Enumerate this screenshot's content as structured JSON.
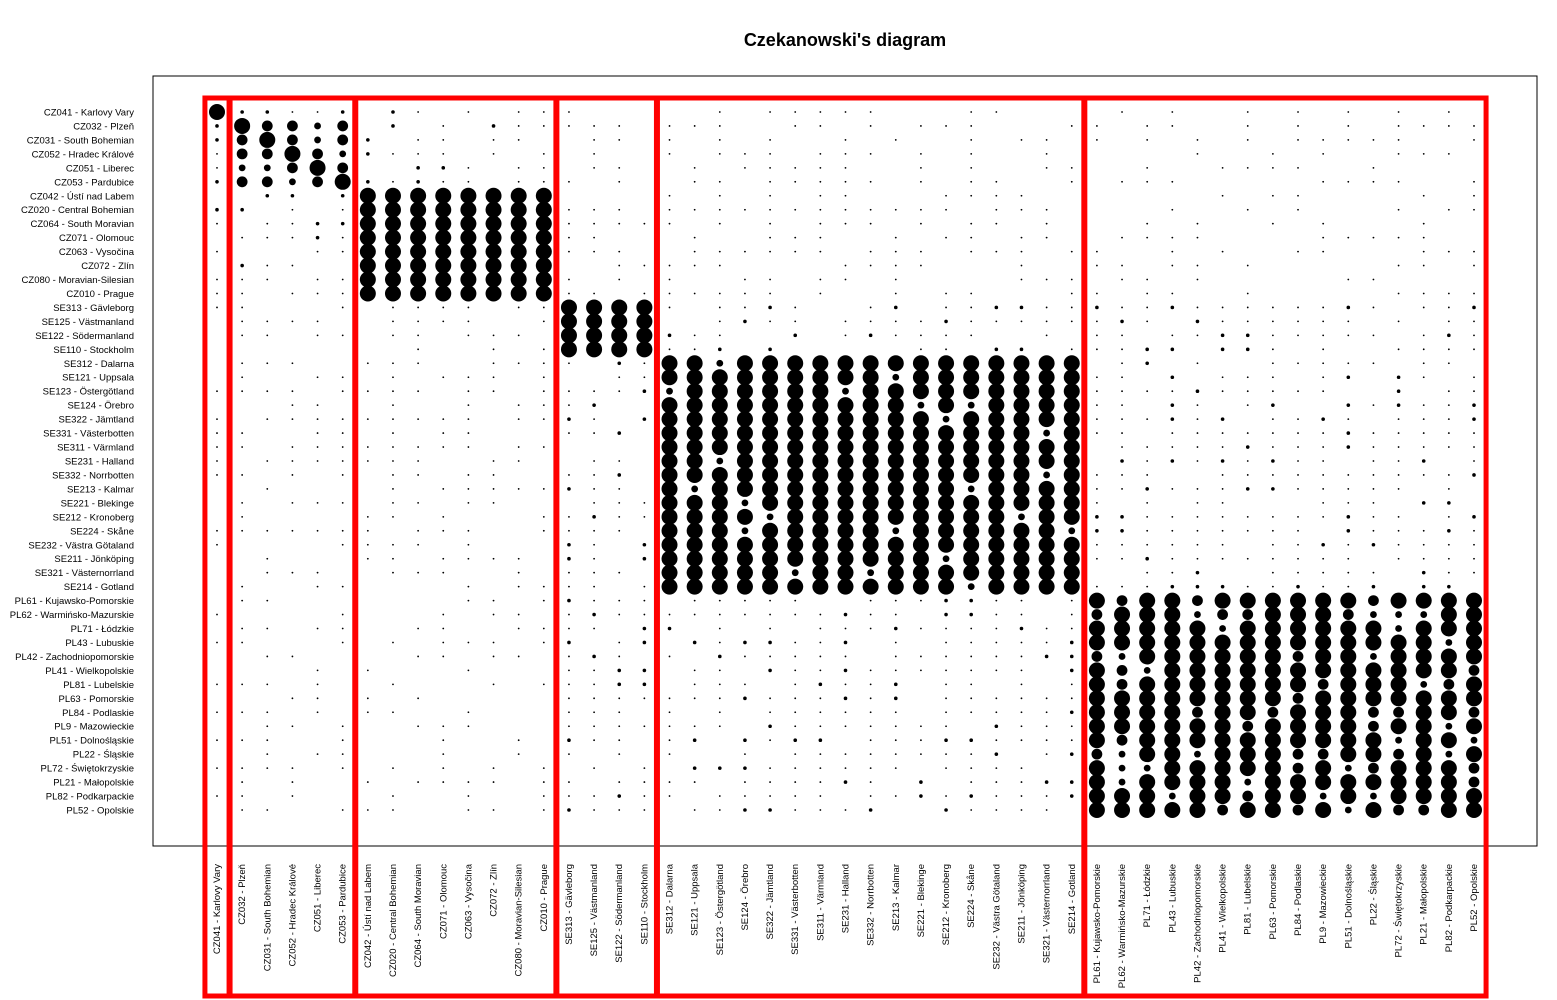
{
  "chart_data": {
    "type": "scatter",
    "title": "Czekanowski's diagram",
    "regions": [
      "CZ041 - Karlovy Vary",
      "CZ032 - Plzeň",
      "CZ031 - South Bohemian",
      "CZ052 - Hradec Králové",
      "CZ051 - Liberec",
      "CZ053 - Pardubice",
      "CZ042 - Ústí nad Labem",
      "CZ020 - Central Bohemian",
      "CZ064 - South Moravian",
      "CZ071 - Olomouc",
      "CZ063 - Vysočina",
      "CZ072 - Zlín",
      "CZ080 - Moravian-Silesian",
      "CZ010 - Prague",
      "SE313 - Gävleborg",
      "SE125 - Västmanland",
      "SE122 - Södermanland",
      "SE110 - Stockholm",
      "SE312 - Dalarna",
      "SE121 - Uppsala",
      "SE123 - Östergötland",
      "SE124 - Örebro",
      "SE322 - Jämtland",
      "SE331 - Västerbotten",
      "SE311 - Värmland",
      "SE231 - Halland",
      "SE332 - Norrbotten",
      "SE213 - Kalmar",
      "SE221 - Blekinge",
      "SE212 - Kronoberg",
      "SE224 - Skåne",
      "SE232 - Västra Götaland",
      "SE211 - Jönköping",
      "SE321 - Västernorrland",
      "SE214 - Gotland",
      "PL61 - Kujawsko-Pomorskie",
      "PL62 - Warmińsko-Mazurskie",
      "PL71 - Łódzkie",
      "PL43 - Lubuskie",
      "PL42 - Zachodniopomorskie",
      "PL41 - Wielkopolskie",
      "PL81 - Lubelskie",
      "PL63 - Pomorskie",
      "PL84 - Podlaskie",
      "PL9 - Mazowieckie",
      "PL51 - Dolnośląskie",
      "PL22 - Śląskie",
      "PL72 - Świętokrzyskie",
      "PL21 - Małopolskie",
      "PL82 - Podkarpackie",
      "PL52 - Opolskie"
    ],
    "clusters": [
      [
        0,
        0
      ],
      [
        1,
        5
      ],
      [
        6,
        13
      ],
      [
        14,
        17
      ],
      [
        18,
        34
      ],
      [
        35,
        50
      ]
    ],
    "similarity_levels": [
      0,
      1,
      2,
      3,
      4,
      5
    ],
    "highlight_color": "#ff0000",
    "grid": false,
    "legend": "none"
  }
}
